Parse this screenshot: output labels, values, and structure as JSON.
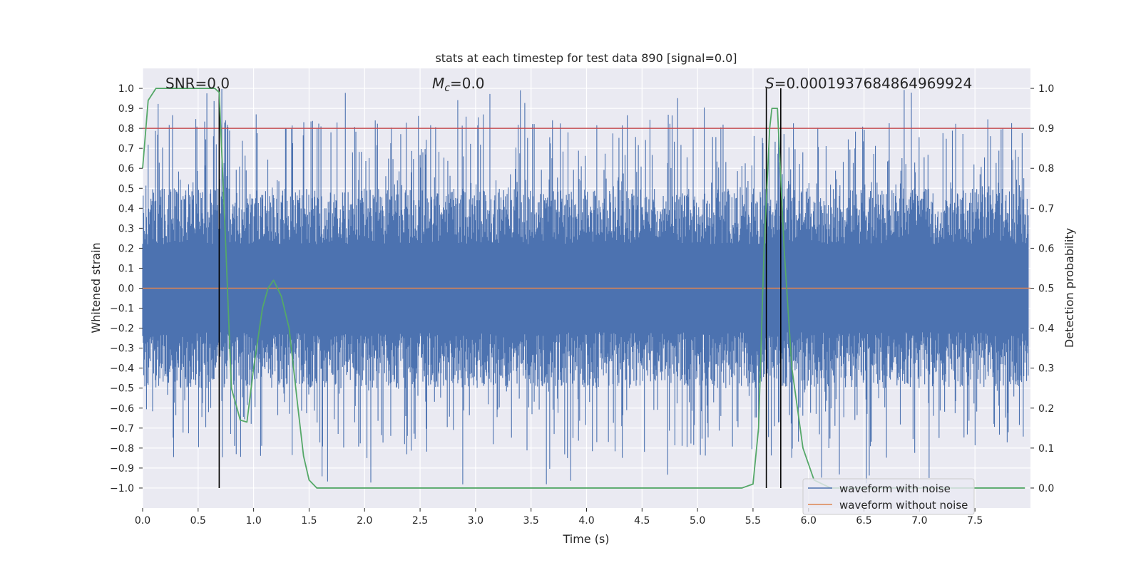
{
  "chart_data": {
    "type": "line",
    "title": "stats at each timestep for test data 890 [signal=0.0]",
    "xlabel": "Time (s)",
    "ylabel": "Whitened strain",
    "y2label": "Detection probability",
    "xlim": [
      0.0,
      8.0
    ],
    "ylim": [
      -1.1,
      1.1
    ],
    "y2lim": [
      -0.05,
      1.05
    ],
    "x_ticks": [
      "0.0",
      "0.5",
      "1.0",
      "1.5",
      "2.0",
      "2.5",
      "3.0",
      "3.5",
      "4.0",
      "4.5",
      "5.0",
      "5.5",
      "6.0",
      "6.5",
      "7.0",
      "7.5"
    ],
    "y_ticks": [
      "1.0",
      "0.9",
      "0.8",
      "0.7",
      "0.6",
      "0.5",
      "0.4",
      "0.3",
      "0.2",
      "0.1",
      "0.0",
      "−0.1",
      "−0.2",
      "−0.3",
      "−0.4",
      "−0.5",
      "−0.6",
      "−0.7",
      "−0.8",
      "−0.9",
      "−1.0"
    ],
    "y2_ticks": [
      "1.0",
      "0.9",
      "0.8",
      "0.7",
      "0.6",
      "0.5",
      "0.4",
      "0.3",
      "0.2",
      "0.1",
      "0.0"
    ],
    "annotations": {
      "snr": "SNR=0.0",
      "mc_symbol": "M",
      "mc_sub": "c",
      "mc_value": "=0.0",
      "s_symbol": "S",
      "s_value": "=0.0001937684864969924"
    },
    "threshold": {
      "value": 0.8,
      "color": "#c44e52"
    },
    "vertical_lines": [
      0.69,
      5.62,
      5.75
    ],
    "series": [
      {
        "name": "waveform with noise",
        "color": "#4c72b0",
        "envelope_typical": 0.45,
        "envelope_peak": 1.0
      },
      {
        "name": "waveform without noise",
        "color": "#dd8452",
        "value": 0.0
      }
    ],
    "probability": {
      "color": "#55a868",
      "x": [
        0.0,
        0.05,
        0.12,
        0.3,
        0.5,
        0.65,
        0.69,
        0.75,
        0.8,
        0.88,
        0.94,
        1.0,
        1.08,
        1.13,
        1.18,
        1.25,
        1.32,
        1.4,
        1.45,
        1.5,
        1.57,
        2.5,
        5.4,
        5.5,
        5.55,
        5.6,
        5.65,
        5.67,
        5.72,
        5.78,
        5.85,
        5.95,
        6.05,
        6.2,
        7.6,
        7.95
      ],
      "y": [
        0.8,
        0.97,
        1.0,
        1.0,
        1.0,
        1.0,
        0.99,
        0.6,
        0.25,
        0.17,
        0.165,
        0.3,
        0.45,
        0.5,
        0.52,
        0.48,
        0.4,
        0.2,
        0.08,
        0.02,
        0.0,
        0.0,
        0.0,
        0.01,
        0.15,
        0.6,
        0.9,
        0.95,
        0.95,
        0.6,
        0.3,
        0.1,
        0.02,
        0.0,
        0.0,
        0.0
      ]
    }
  },
  "legend": {
    "items": [
      {
        "label": "waveform with noise",
        "color": "#4c72b0"
      },
      {
        "label": "waveform without noise",
        "color": "#dd8452"
      }
    ]
  }
}
